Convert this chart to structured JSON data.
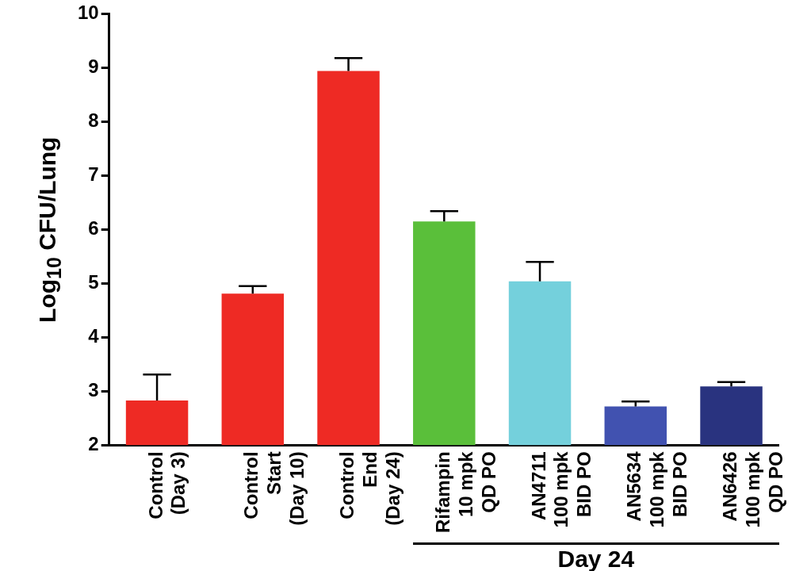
{
  "chart_data": {
    "type": "bar",
    "ylabel": "Log$_{10}$ CFU/Lung",
    "categories": [
      "Control\n(Day 3)",
      "Control\nStart\n(Day 10)",
      "Control\nEnd\n(Day 24)",
      "Rifampin\n10 mpk\nQD PO",
      "AN4711\n100 mpk\nBID PO",
      "AN5634\n100 mpk\nBID PO",
      "AN6426\n100 mpk\nQD PO"
    ],
    "values": [
      2.83,
      4.81,
      8.94,
      6.15,
      5.04,
      2.72,
      3.09
    ],
    "colors": [
      "#ee2a24",
      "#ee2a24",
      "#ee2a24",
      "#5abf3a",
      "#74d0dc",
      "#4152b0",
      "#29337f"
    ],
    "errors": [
      [
        2.83,
        3.31
      ],
      [
        4.81,
        4.95
      ],
      [
        8.94,
        9.18
      ],
      [
        6.15,
        6.34
      ],
      [
        5.04,
        5.4
      ],
      [
        2.72,
        2.81
      ],
      [
        3.09,
        3.17
      ]
    ],
    "ylim": [
      2,
      10
    ],
    "yticks": [
      2,
      3,
      4,
      5,
      6,
      7,
      8,
      9,
      10
    ],
    "grid": false,
    "legend": false,
    "annotations": [
      "Day 24"
    ]
  }
}
